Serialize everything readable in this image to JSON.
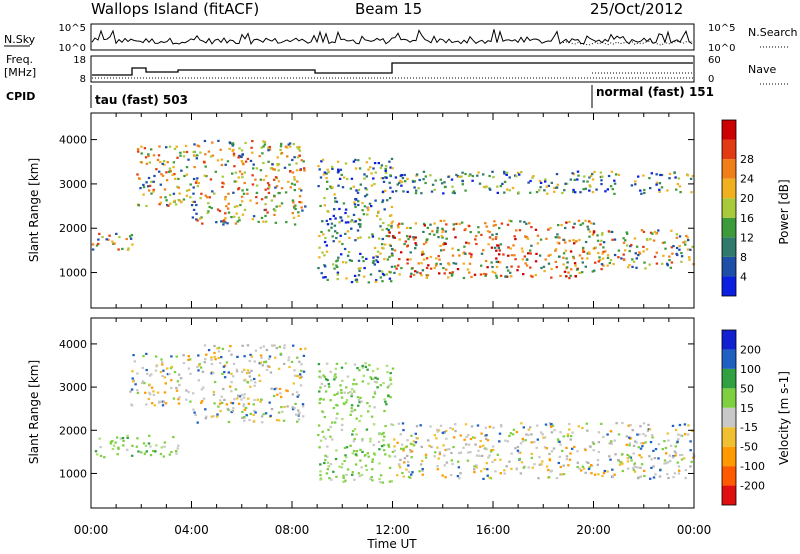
{
  "header": {
    "station": "Wallops Island (fitACF)",
    "beam": "Beam 15",
    "date": "25/Oct/2012"
  },
  "strips": {
    "nsky_label": "N.Sky",
    "nsky_ticks": [
      "10^5",
      "10^0"
    ],
    "nsearch_label": "N.Search",
    "nsearch_ticks": [
      "10^5",
      "10^0"
    ],
    "freq_label_line1": "Freq.",
    "freq_label_line2": "[MHz]",
    "freq_ticks": [
      "18",
      "8"
    ],
    "nave_label": "Nave",
    "nave_ticks": [
      "60",
      "0"
    ],
    "cpid_label": "CPID",
    "cpid_segments": [
      {
        "start_hour": 0.0,
        "end_hour": 20.0,
        "label": "tau (fast) 503"
      },
      {
        "start_hour": 20.0,
        "end_hour": 24.0,
        "label": "normal (fast) 151"
      }
    ]
  },
  "chart_data": [
    {
      "type": "heatmap",
      "name": "Power",
      "ylabel": "Slant Range [km]",
      "yticks": [
        1000,
        2000,
        3000,
        4000
      ],
      "ylim": [
        200,
        4600
      ],
      "xlim": [
        0,
        24
      ],
      "colorbar_label": "Power [dB]",
      "colorbar_ticks": [
        "4",
        "8",
        "12",
        "16",
        "20",
        "24",
        "28"
      ],
      "colorbar_colors": [
        "#0a1fe0",
        "#1e4fa8",
        "#2f7a6a",
        "#3d9a3a",
        "#a7c93a",
        "#f0b020",
        "#f07f1a",
        "#e23a12",
        "#cc0000"
      ],
      "echo_regions": [
        {
          "t_start": 0.0,
          "t_end": 1.8,
          "range_start": 1500,
          "range_end": 1900,
          "level": "orange"
        },
        {
          "t_start": 1.8,
          "t_end": 4.0,
          "range_start": 2500,
          "range_end": 3900,
          "level": "orange"
        },
        {
          "t_start": 4.0,
          "t_end": 8.5,
          "range_start": 2100,
          "range_end": 4000,
          "level": "orange"
        },
        {
          "t_start": 9.0,
          "t_end": 12.0,
          "range_start": 800,
          "range_end": 3600,
          "level": "green"
        },
        {
          "t_start": 11.8,
          "t_end": 20.0,
          "range_start": 900,
          "range_end": 2200,
          "level": "red"
        },
        {
          "t_start": 12.0,
          "t_end": 24.0,
          "range_start": 2800,
          "range_end": 3300,
          "level": "green"
        },
        {
          "t_start": 20.0,
          "t_end": 24.0,
          "range_start": 1100,
          "range_end": 2000,
          "level": "orange"
        }
      ]
    },
    {
      "type": "heatmap",
      "name": "Velocity",
      "ylabel": "Slant Range [km]",
      "yticks": [
        1000,
        2000,
        3000,
        4000
      ],
      "ylim": [
        200,
        4600
      ],
      "xlim": [
        0,
        24
      ],
      "xlabel": "Time UT",
      "xticks": [
        "00:00",
        "04:00",
        "08:00",
        "12:00",
        "16:00",
        "20:00",
        "00:00"
      ],
      "colorbar_label": "Velocity [m s-1]",
      "colorbar_ticks": [
        "-200",
        "-100",
        "-50",
        "-15",
        "15",
        "50",
        "100",
        "200"
      ],
      "colorbar_colors": [
        "#e01010",
        "#ff5a00",
        "#ff9a00",
        "#f0c030",
        "#c8c8c8",
        "#7ed040",
        "#30a040",
        "#2060c0",
        "#1020d0"
      ],
      "echo_regions": [
        {
          "t_start": 0.0,
          "t_end": 3.5,
          "range_start": 1400,
          "range_end": 1900,
          "level": "green"
        },
        {
          "t_start": 1.5,
          "t_end": 4.0,
          "range_start": 2600,
          "range_end": 3800,
          "level": "gray"
        },
        {
          "t_start": 4.0,
          "t_end": 8.5,
          "range_start": 2200,
          "range_end": 4000,
          "level": "gray"
        },
        {
          "t_start": 9.0,
          "t_end": 12.0,
          "range_start": 800,
          "range_end": 3600,
          "level": "green"
        },
        {
          "t_start": 12.0,
          "t_end": 24.0,
          "range_start": 900,
          "range_end": 2200,
          "level": "gray"
        }
      ]
    }
  ]
}
